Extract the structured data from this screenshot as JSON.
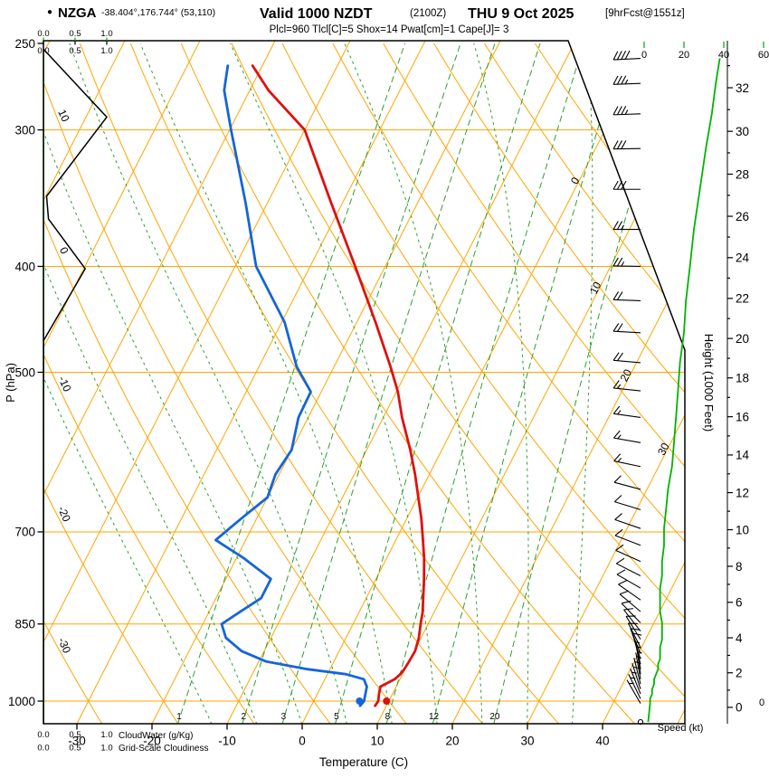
{
  "header": {
    "marker": "●",
    "station": "NZGA",
    "coords": "-38.404°,176.744° (53,110)",
    "valid": "Valid 1000 NZDT",
    "valid_zulu": "(2100Z)",
    "valid_date": "THU 9 Oct 2025",
    "forecast": "[9hrFcst@1551z]",
    "params": "Plcl=960 Tlcl[C]=5 Shox=14 Pwat[cm]=1 Cape[J]= 3"
  },
  "colors": {
    "orange_grid": "#FFA500",
    "green_line": "#2CA02C",
    "green_text": "#00A400",
    "speed_curve": "#00B400",
    "temp_curve": "#E01010",
    "dewpoint_curve": "#1565D8",
    "magenta_text": "#CC0066",
    "black": "#000000"
  },
  "axes": {
    "pressure": {
      "title": "P (hPa)",
      "ticks": [
        250,
        300,
        400,
        500,
        700,
        850,
        1000
      ]
    },
    "temperature": {
      "title": "Temperature (C)",
      "ticks": [
        -30,
        -20,
        -10,
        0,
        10,
        20,
        30,
        40
      ]
    },
    "height": {
      "title": "Height (1000 Feet)",
      "ticks": [
        0,
        2,
        4,
        6,
        8,
        10,
        12,
        14,
        16,
        18,
        20,
        22,
        24,
        26,
        28,
        30,
        32
      ]
    },
    "speed": {
      "title": "Speed (kt)",
      "ticks": [
        0,
        20,
        40,
        60
      ],
      "edge_label": "0"
    },
    "cloudwater": {
      "title": "CloudWater (g/Kg)",
      "ticks": [
        "0.0",
        "0.5",
        "1.0"
      ]
    },
    "cloudiness": {
      "title": "Grid-Scale Cloudiness",
      "ticks": [
        "0.0",
        "0.5",
        "1.0"
      ]
    }
  },
  "chart_data": {
    "type": "skewt-log-p-sounding",
    "pressure_range_hpa": [
      250,
      1050
    ],
    "pressure_lines": [
      300,
      400,
      500,
      700,
      850,
      1000
    ],
    "isotherm_step_c": 10,
    "isotherm_range_c": [
      -120,
      50
    ],
    "isotherm_labels": [
      0,
      10,
      20,
      30
    ],
    "dry_adiabat_step_c": 10,
    "dry_adiabat_range_c": [
      -60,
      150
    ],
    "dry_adiabat_labels": [
      10,
      0,
      -10,
      -20,
      -30
    ],
    "mixing_ratios_g_kg": [
      1,
      2,
      3,
      5,
      8,
      12,
      20
    ],
    "moist_adiabat_surface_temps_c": [
      -12,
      -6,
      0,
      6,
      12,
      18,
      24,
      30,
      36
    ],
    "indices": {
      "plcl_hpa": 960,
      "tlcl_c": 5,
      "showalter": 14,
      "pwat_cm": 1,
      "cape_j": 3
    },
    "surface": {
      "p": 1000,
      "t": 9.7,
      "td": 6.1
    },
    "sounding": [
      {
        "p": 1010,
        "t": 8.5,
        "td": 6.5
      },
      {
        "p": 1000,
        "t": 8.6,
        "td": 6.7
      },
      {
        "p": 985,
        "t": 8.2,
        "td": 6.4
      },
      {
        "p": 970,
        "t": 7.9,
        "td": 6.1
      },
      {
        "p": 955,
        "t": 9.3,
        "td": 5.2
      },
      {
        "p": 945,
        "t": 9.7,
        "td": 2.5
      },
      {
        "p": 935,
        "t": 9.9,
        "td": -3
      },
      {
        "p": 920,
        "t": 10,
        "td": -9
      },
      {
        "p": 900,
        "t": 10.1,
        "td": -13
      },
      {
        "p": 875,
        "t": 9.7,
        "td": -16
      },
      {
        "p": 850,
        "t": 9,
        "td": -17.5
      },
      {
        "p": 830,
        "t": 8.5,
        "td": -16
      },
      {
        "p": 805,
        "t": 7.6,
        "td": -14
      },
      {
        "p": 773,
        "t": 6.4,
        "td": -14
      },
      {
        "p": 740,
        "t": 5,
        "td": -19
      },
      {
        "p": 712,
        "t": 3.6,
        "td": -24
      },
      {
        "p": 680,
        "t": 1.9,
        "td": -22
      },
      {
        "p": 651,
        "t": 0.1,
        "td": -20
      },
      {
        "p": 620,
        "t": -1.9,
        "td": -20.5
      },
      {
        "p": 589,
        "t": -4.2,
        "td": -20
      },
      {
        "p": 550,
        "t": -7.5,
        "td": -21.3
      },
      {
        "p": 521,
        "t": -9.8,
        "td": -21.4
      },
      {
        "p": 494,
        "t": -12.5,
        "td": -25
      },
      {
        "p": 450,
        "t": -17.5,
        "td": -29.6
      },
      {
        "p": 400,
        "t": -24,
        "td": -37.2
      },
      {
        "p": 350,
        "t": -31.5,
        "td": -42.9
      },
      {
        "p": 300,
        "t": -40,
        "td": -49.8
      },
      {
        "p": 276,
        "t": -47.5,
        "td": -53.4
      },
      {
        "p": 262,
        "t": -51.3,
        "td": -54.6
      }
    ],
    "winds": [
      {
        "p": 1045,
        "dir": 327,
        "spd": 2
      },
      {
        "p": 1005,
        "dir": 330,
        "spd": 3
      },
      {
        "p": 995,
        "dir": 334,
        "spd": 3
      },
      {
        "p": 985,
        "dir": 338,
        "spd": 4
      },
      {
        "p": 975,
        "dir": 342,
        "spd": 4
      },
      {
        "p": 965,
        "dir": 346,
        "spd": 5
      },
      {
        "p": 955,
        "dir": 350,
        "spd": 5
      },
      {
        "p": 945,
        "dir": 352,
        "spd": 6
      },
      {
        "p": 935,
        "dir": 350,
        "spd": 7
      },
      {
        "p": 925,
        "dir": 346,
        "spd": 7
      },
      {
        "p": 915,
        "dir": 342,
        "spd": 8
      },
      {
        "p": 905,
        "dir": 338,
        "spd": 8
      },
      {
        "p": 893,
        "dir": 333,
        "spd": 8
      },
      {
        "p": 878,
        "dir": 328,
        "spd": 9
      },
      {
        "p": 863,
        "dir": 322,
        "spd": 9
      },
      {
        "p": 848,
        "dir": 316,
        "spd": 9
      },
      {
        "p": 828,
        "dir": 310,
        "spd": 8
      },
      {
        "p": 808,
        "dir": 305,
        "spd": 8
      },
      {
        "p": 788,
        "dir": 300,
        "spd": 8
      },
      {
        "p": 768,
        "dir": 297,
        "spd": 9
      },
      {
        "p": 745,
        "dir": 294,
        "spd": 9
      },
      {
        "p": 720,
        "dir": 291,
        "spd": 10
      },
      {
        "p": 695,
        "dir": 289,
        "spd": 10
      },
      {
        "p": 668,
        "dir": 287,
        "spd": 11
      },
      {
        "p": 640,
        "dir": 285,
        "spd": 12
      },
      {
        "p": 610,
        "dir": 282,
        "spd": 14
      },
      {
        "p": 580,
        "dir": 280,
        "spd": 15
      },
      {
        "p": 550,
        "dir": 278,
        "spd": 16
      },
      {
        "p": 520,
        "dir": 276,
        "spd": 17
      },
      {
        "p": 490,
        "dir": 275,
        "spd": 18
      },
      {
        "p": 460,
        "dir": 273,
        "spd": 20
      },
      {
        "p": 430,
        "dir": 272,
        "spd": 21
      },
      {
        "p": 400,
        "dir": 271,
        "spd": 23
      },
      {
        "p": 370,
        "dir": 270,
        "spd": 25
      },
      {
        "p": 340,
        "dir": 270,
        "spd": 28
      },
      {
        "p": 312,
        "dir": 269,
        "spd": 31
      },
      {
        "p": 290,
        "dir": 268,
        "spd": 34
      },
      {
        "p": 272,
        "dir": 268,
        "spd": 36
      },
      {
        "p": 258,
        "dir": 267,
        "spd": 38
      }
    ],
    "cloudiness_profile": [
      {
        "p": 253,
        "v": 0
      },
      {
        "p": 292,
        "v": 1
      },
      {
        "p": 345,
        "v": 0.05
      },
      {
        "p": 362,
        "v": 0.08
      },
      {
        "p": 402,
        "v": 0.66
      },
      {
        "p": 468,
        "v": 0
      },
      {
        "p": 1048,
        "v": 0
      }
    ],
    "cloudwater_profile": [
      {
        "p": 253,
        "v": 0.005
      },
      {
        "p": 1048,
        "v": 0.005
      }
    ]
  }
}
